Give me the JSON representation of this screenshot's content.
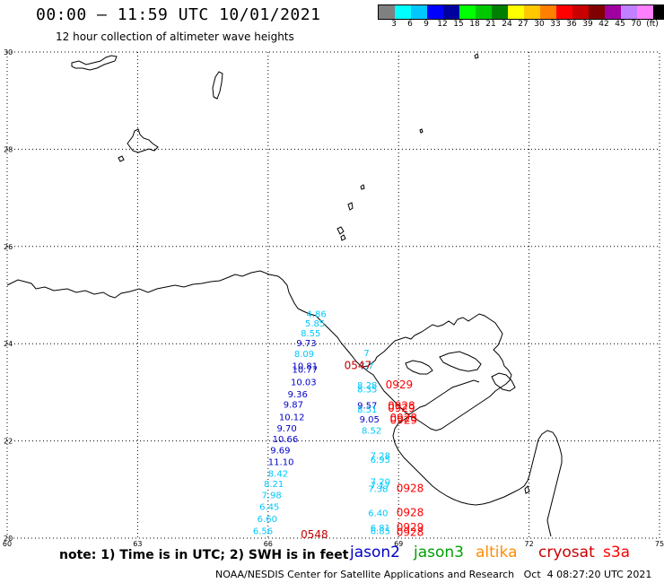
{
  "header": {
    "title": "00:00 – 11:59 UTC 10/01/2021",
    "subtitle": "12 hour collection of altimeter wave heights"
  },
  "colorbar": {
    "colors": [
      "#808080",
      "#00ffff",
      "#00c8ff",
      "#0000ff",
      "#0000a0",
      "#00ff00",
      "#00c800",
      "#008000",
      "#ffff00",
      "#ffc800",
      "#ff8000",
      "#ff0000",
      "#c80000",
      "#800000",
      "#a000a0",
      "#c080ff",
      "#ff80ff",
      "#000000"
    ],
    "labels": [
      "3",
      "6",
      "9",
      "12",
      "15",
      "18",
      "21",
      "24",
      "27",
      "30",
      "33",
      "36",
      "39",
      "42",
      "45",
      "70",
      "(ft)"
    ]
  },
  "axes": {
    "lat_labels": [
      "30",
      "28",
      "26",
      "24",
      "22",
      "20"
    ],
    "lon_labels": [
      "60",
      "63",
      "66",
      "69",
      "72",
      "75"
    ]
  },
  "obs": [
    {
      "t": "4.86",
      "c": "#00c8ff",
      "lon": 66.88,
      "lat": 24.55
    },
    {
      "t": "5.85",
      "c": "#00c8ff",
      "lon": 66.85,
      "lat": 24.35
    },
    {
      "t": "8.55",
      "c": "#00c8ff",
      "lon": 66.75,
      "lat": 24.15
    },
    {
      "t": "9.73",
      "c": "#0000c8",
      "lon": 66.65,
      "lat": 23.95
    },
    {
      "t": "8.09",
      "c": "#00c8ff",
      "lon": 66.6,
      "lat": 23.73
    },
    {
      "t": "10.81",
      "c": "#0000c8",
      "lon": 66.55,
      "lat": 23.48
    },
    {
      "t": "10.77",
      "c": "#0000c8",
      "lon": 66.55,
      "lat": 23.4
    },
    {
      "t": "10.03",
      "c": "#0000c8",
      "lon": 66.52,
      "lat": 23.15
    },
    {
      "t": "9.36",
      "c": "#0000c8",
      "lon": 66.45,
      "lat": 22.9
    },
    {
      "t": "9.87",
      "c": "#0000c8",
      "lon": 66.35,
      "lat": 22.68
    },
    {
      "t": "10.12",
      "c": "#0000c8",
      "lon": 66.25,
      "lat": 22.43
    },
    {
      "t": "9.70",
      "c": "#0000c8",
      "lon": 66.2,
      "lat": 22.2
    },
    {
      "t": "10.66",
      "c": "#0000c8",
      "lon": 66.1,
      "lat": 21.97
    },
    {
      "t": "9.69",
      "c": "#0000c8",
      "lon": 66.05,
      "lat": 21.74
    },
    {
      "t": "11.10",
      "c": "#0000c8",
      "lon": 66.0,
      "lat": 21.5
    },
    {
      "t": "8.42",
      "c": "#00c8ff",
      "lon": 66.0,
      "lat": 21.26
    },
    {
      "t": "8.21",
      "c": "#00c8ff",
      "lon": 65.9,
      "lat": 21.05
    },
    {
      "t": "7.98",
      "c": "#00c8ff",
      "lon": 65.85,
      "lat": 20.82
    },
    {
      "t": "6.45",
      "c": "#00c8ff",
      "lon": 65.8,
      "lat": 20.58
    },
    {
      "t": "6.60",
      "c": "#00c8ff",
      "lon": 65.75,
      "lat": 20.33
    },
    {
      "t": "6.56",
      "c": "#00c8ff",
      "lon": 65.65,
      "lat": 20.08
    },
    {
      "t": "7",
      "c": "#00c8ff",
      "lon": 68.2,
      "lat": 23.75
    },
    {
      "t": "7.7",
      "c": "#00c8ff",
      "lon": 68.1,
      "lat": 23.48
    },
    {
      "t": "8.28",
      "c": "#00c8ff",
      "lon": 68.05,
      "lat": 23.08
    },
    {
      "t": "8.35",
      "c": "#00c8ff",
      "lon": 68.05,
      "lat": 23.0
    },
    {
      "t": "9.57",
      "c": "#0000c8",
      "lon": 68.05,
      "lat": 22.67
    },
    {
      "t": "8.51",
      "c": "#00c8ff",
      "lon": 68.05,
      "lat": 22.58
    },
    {
      "t": "9.05",
      "c": "#0000c8",
      "lon": 68.1,
      "lat": 22.38
    },
    {
      "t": "8.52",
      "c": "#00c8ff",
      "lon": 68.15,
      "lat": 22.15
    },
    {
      "t": "7.28",
      "c": "#00c8ff",
      "lon": 68.35,
      "lat": 21.63
    },
    {
      "t": "6.95",
      "c": "#00c8ff",
      "lon": 68.35,
      "lat": 21.55
    },
    {
      "t": "7.20",
      "c": "#00c8ff",
      "lon": 68.35,
      "lat": 21.1
    },
    {
      "t": "7.17",
      "c": "#00c8ff",
      "lon": 68.35,
      "lat": 21.02
    },
    {
      "t": "7.38",
      "c": "#00c8ff",
      "lon": 68.3,
      "lat": 20.95
    },
    {
      "t": "6.40",
      "c": "#00c8ff",
      "lon": 68.3,
      "lat": 20.45
    },
    {
      "t": "6.81",
      "c": "#00c8ff",
      "lon": 68.35,
      "lat": 20.15
    },
    {
      "t": "6.85",
      "c": "#00c8ff",
      "lon": 68.35,
      "lat": 20.08
    }
  ],
  "passes": [
    {
      "t": "0547",
      "c": "#c80000",
      "lon": 67.75,
      "lat": 23.48
    },
    {
      "t": "0929",
      "c": "#ff0000",
      "lon": 68.7,
      "lat": 23.08
    },
    {
      "t": "0928",
      "c": "#ff0000",
      "lon": 68.75,
      "lat": 22.65
    },
    {
      "t": "0929",
      "c": "#ff0000",
      "lon": 68.75,
      "lat": 22.6
    },
    {
      "t": "0928",
      "c": "#ff0000",
      "lon": 68.8,
      "lat": 22.4
    },
    {
      "t": "0929",
      "c": "#ff0000",
      "lon": 68.8,
      "lat": 22.35
    },
    {
      "t": "0928",
      "c": "#ff0000",
      "lon": 68.95,
      "lat": 20.95
    },
    {
      "t": "0928",
      "c": "#ff0000",
      "lon": 68.95,
      "lat": 20.45
    },
    {
      "t": "0929",
      "c": "#ff0000",
      "lon": 68.95,
      "lat": 20.15
    },
    {
      "t": "0928",
      "c": "#ff0000",
      "lon": 68.95,
      "lat": 20.05
    },
    {
      "t": "0548",
      "c": "#c80000",
      "lon": 66.75,
      "lat": 20.0
    }
  ],
  "footer": {
    "note": "note: 1) Time is in UTC; 2) SWH is in feet",
    "legend": [
      {
        "label": "jason2",
        "color": "#0000c8"
      },
      {
        "label": "jason3",
        "color": "#00a000"
      },
      {
        "label": "altika",
        "color": "#ff8c00"
      },
      {
        "label": "cryosat",
        "color": "#c80000"
      },
      {
        "label": "s3a",
        "color": "#ff0000"
      }
    ],
    "credit": "NOAA/NESDIS Center for Satellite Applications and Research   Oct  4 08:27:20 UTC 2021"
  }
}
